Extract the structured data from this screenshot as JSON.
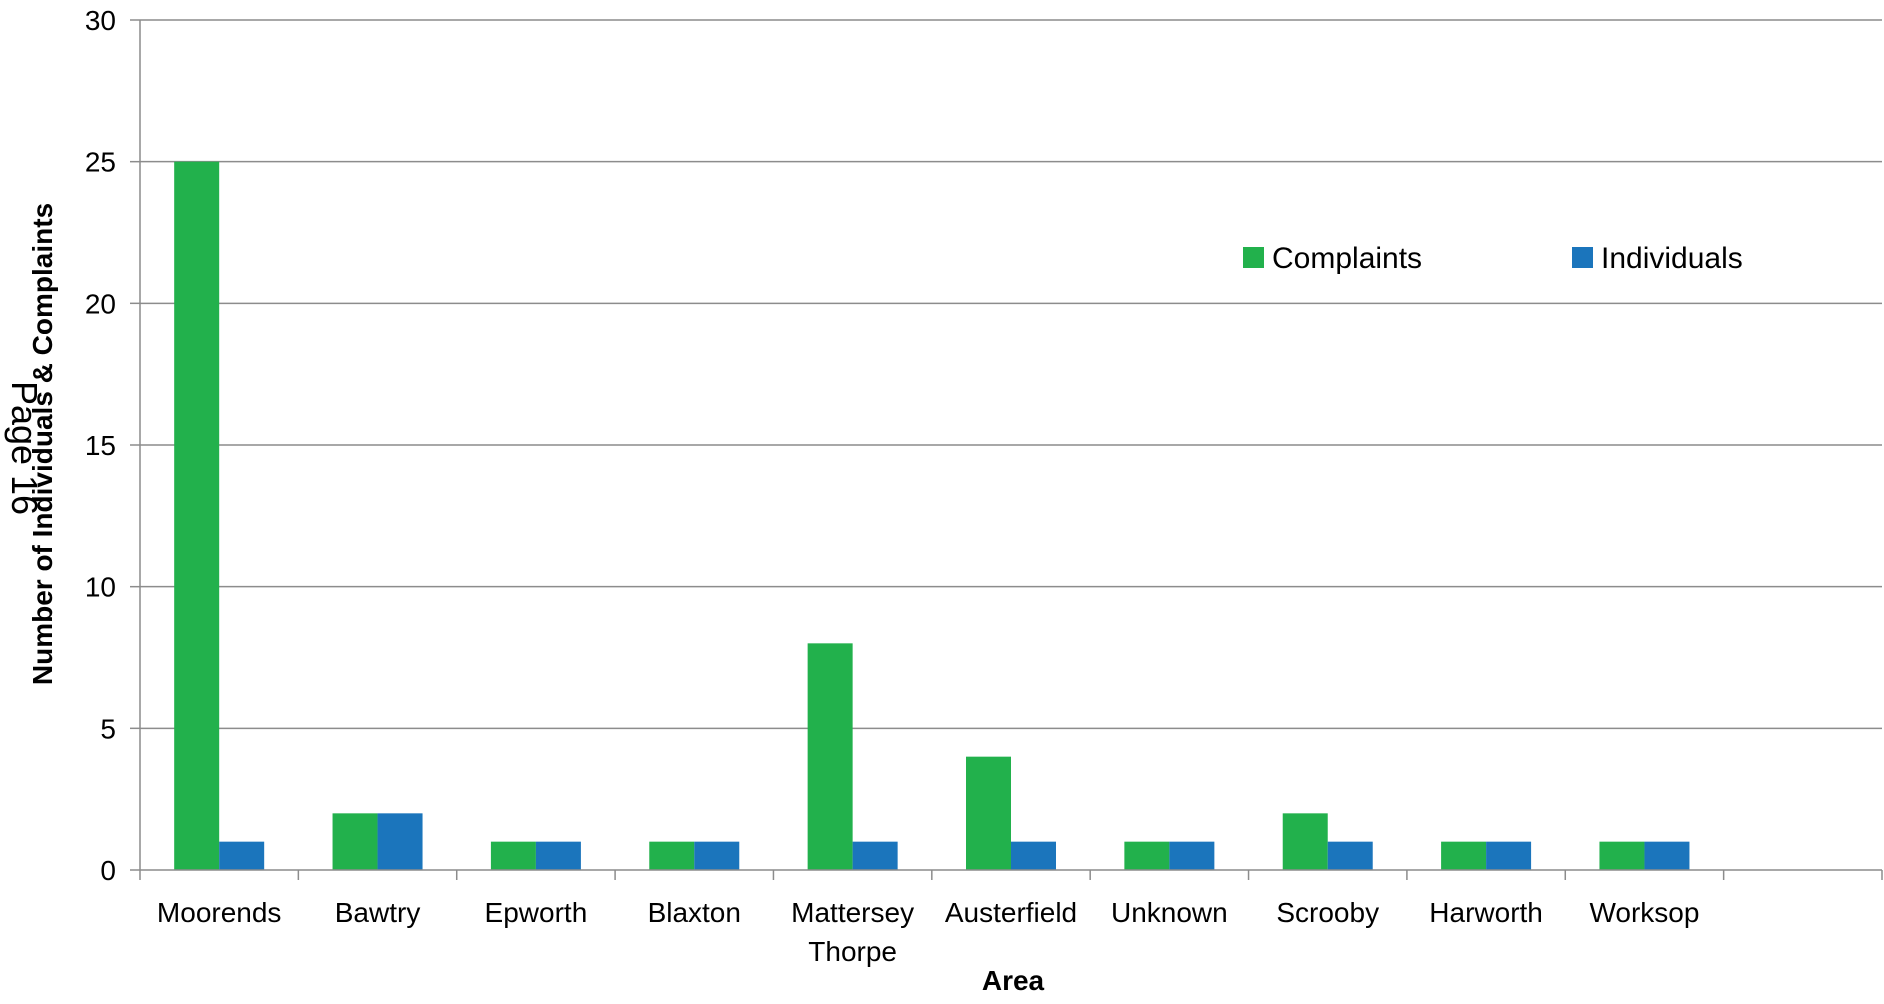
{
  "page_stamp": "Page 16",
  "colors": {
    "complaints": "#22B14C",
    "individuals": "#1B75BC",
    "grid": "#8C8C8C"
  },
  "chart_data": {
    "type": "bar",
    "categories": [
      "Moorends",
      "Bawtry",
      "Epworth",
      "Blaxton",
      "Mattersey Thorpe",
      "Austerfield",
      "Unknown",
      "Scrooby",
      "Harworth",
      "Worksop",
      ""
    ],
    "series": [
      {
        "name": "Complaints",
        "values": [
          25,
          2,
          1,
          1,
          8,
          4,
          1,
          2,
          1,
          1,
          null
        ]
      },
      {
        "name": "Individuals",
        "values": [
          1,
          2,
          1,
          1,
          1,
          1,
          1,
          1,
          1,
          1,
          null
        ]
      }
    ],
    "title": "",
    "xlabel": "Area",
    "ylabel": "Number of Individuals & Complaints",
    "ylim": [
      0,
      30
    ],
    "yticks": [
      0,
      5,
      10,
      15,
      20,
      25,
      30
    ],
    "grid": true,
    "legend": "top-right"
  }
}
